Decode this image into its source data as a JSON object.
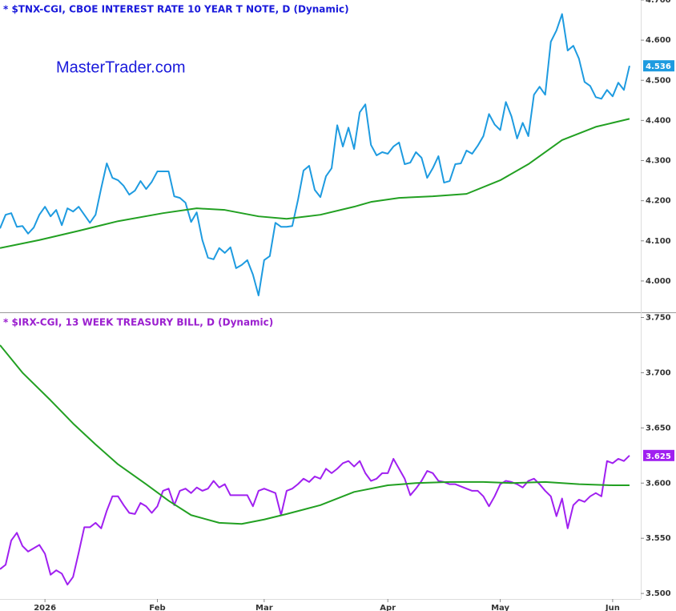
{
  "chart_data": [
    {
      "type": "line",
      "title": "* $TNX-CGI, CBOE INTEREST RATE 10 YEAR T NOTE, D (Dynamic)",
      "title_color": "#1a1adb",
      "annotation": "MasterTrader.com",
      "x": [
        0,
        1,
        2,
        3,
        4,
        5,
        6,
        7,
        8,
        9,
        10,
        11,
        12,
        13,
        14,
        15,
        16,
        17,
        18,
        19,
        20,
        21,
        22,
        23,
        24,
        25,
        26,
        27,
        28,
        29,
        30,
        31,
        32,
        33,
        34,
        35,
        36,
        37,
        38,
        39,
        40,
        41,
        42,
        43,
        44,
        45,
        46,
        47,
        48,
        49,
        50,
        51,
        52,
        53,
        54,
        55,
        56,
        57,
        58,
        59,
        60,
        61,
        62,
        63,
        64,
        65,
        66,
        67,
        68,
        69,
        70,
        71,
        72,
        73,
        74,
        75,
        76,
        77,
        78,
        79,
        80,
        81,
        82,
        83,
        84,
        85,
        86,
        87,
        88,
        89,
        90,
        91,
        92,
        93,
        94,
        95,
        96,
        97,
        98,
        99,
        100,
        101,
        102,
        103,
        104,
        105,
        106,
        107,
        108,
        109,
        110,
        111,
        112
      ],
      "xlim": [
        0,
        114
      ],
      "ylim": [
        3.922,
        4.7
      ],
      "yticks": [
        {
          "value": 4,
          "label": "4.000"
        },
        {
          "value": 4.1,
          "label": "4.100"
        },
        {
          "value": 4.2,
          "label": "4.200"
        },
        {
          "value": 4.3,
          "label": "4.300"
        },
        {
          "value": 4.4,
          "label": "4.400"
        },
        {
          "value": 4.5,
          "label": "4.500"
        },
        {
          "value": 4.6,
          "label": "4.600"
        },
        {
          "value": 4.7,
          "label": "4.700"
        }
      ],
      "series": [
        {
          "color": "#1e9be0",
          "last_label": true,
          "values": [
            4.131,
            4.165,
            4.169,
            4.135,
            4.137,
            4.118,
            4.133,
            4.165,
            4.185,
            4.161,
            4.177,
            4.139,
            4.181,
            4.173,
            4.185,
            4.165,
            4.145,
            4.165,
            4.231,
            4.293,
            4.257,
            4.251,
            4.237,
            4.215,
            4.225,
            4.249,
            4.229,
            4.247,
            4.273,
            4.273,
            4.273,
            4.211,
            4.207,
            4.195,
            4.147,
            4.171,
            4.102,
            4.058,
            4.054,
            4.082,
            4.07,
            4.084,
            4.032,
            4.04,
            4.052,
            4.016,
            3.964,
            4.052,
            4.062,
            4.145,
            4.135,
            4.135,
            4.137,
            4.201,
            4.275,
            4.287,
            4.227,
            4.209,
            4.261,
            4.281,
            4.388,
            4.335,
            4.382,
            4.329,
            4.42,
            4.44,
            4.339,
            4.313,
            4.321,
            4.317,
            4.335,
            4.345,
            4.291,
            4.295,
            4.321,
            4.307,
            4.257,
            4.281,
            4.311,
            4.245,
            4.249,
            4.291,
            4.293,
            4.325,
            4.317,
            4.337,
            4.361,
            4.416,
            4.39,
            4.376,
            4.446,
            4.41,
            4.355,
            4.394,
            4.361,
            4.464,
            4.484,
            4.464,
            4.596,
            4.624,
            4.665,
            4.574,
            4.586,
            4.554,
            4.496,
            4.486,
            4.458,
            4.454,
            4.476,
            4.46,
            4.494,
            4.476,
            4.536
          ]
        },
        {
          "color": "#22a022",
          "x": [
            0,
            7,
            14,
            21,
            29,
            35,
            40,
            46,
            51,
            57,
            63,
            66,
            71,
            77,
            83,
            89,
            94,
            100,
            106,
            112
          ],
          "values": [
            4.082,
            4.102,
            4.125,
            4.149,
            4.169,
            4.181,
            4.177,
            4.161,
            4.155,
            4.165,
            4.185,
            4.197,
            4.207,
            4.211,
            4.217,
            4.251,
            4.291,
            4.351,
            4.384,
            4.404
          ]
        }
      ]
    },
    {
      "type": "line",
      "title": "* $IRX-CGI, 13 WEEK TREASURY BILL, D (Dynamic)",
      "title_color": "#9b1fcf",
      "x": [
        0,
        1,
        2,
        3,
        4,
        5,
        6,
        7,
        8,
        9,
        10,
        11,
        12,
        13,
        14,
        15,
        16,
        17,
        18,
        19,
        20,
        21,
        22,
        23,
        24,
        25,
        26,
        27,
        28,
        29,
        30,
        31,
        32,
        33,
        34,
        35,
        36,
        37,
        38,
        39,
        40,
        41,
        42,
        43,
        44,
        45,
        46,
        47,
        48,
        49,
        50,
        51,
        52,
        53,
        54,
        55,
        56,
        57,
        58,
        59,
        60,
        61,
        62,
        63,
        64,
        65,
        66,
        67,
        68,
        69,
        70,
        71,
        72,
        73,
        74,
        75,
        76,
        77,
        78,
        79,
        80,
        81,
        82,
        83,
        84,
        85,
        86,
        87,
        88,
        89,
        90,
        91,
        92,
        93,
        94,
        95,
        96,
        97,
        98,
        99,
        100,
        101,
        102,
        103,
        104,
        105,
        106,
        107,
        108,
        109,
        110,
        111,
        112
      ],
      "xlim": [
        0,
        114
      ],
      "xticks": [
        {
          "value": 8,
          "label": "2026"
        },
        {
          "value": 28,
          "label": "Feb"
        },
        {
          "value": 47,
          "label": "Mar"
        },
        {
          "value": 69,
          "label": "Apr"
        },
        {
          "value": 89,
          "label": "May"
        },
        {
          "value": 109,
          "label": "Jun"
        }
      ],
      "ylim": [
        3.495,
        3.754
      ],
      "yticks": [
        {
          "value": 3.5,
          "label": "3.500"
        },
        {
          "value": 3.55,
          "label": "3.550"
        },
        {
          "value": 3.6,
          "label": "3.600"
        },
        {
          "value": 3.65,
          "label": "3.650"
        },
        {
          "value": 3.7,
          "label": "3.700"
        },
        {
          "value": 3.75,
          "label": "3.750"
        }
      ],
      "series": [
        {
          "color": "#a020f0",
          "last_label": true,
          "values": [
            3.522,
            3.526,
            3.548,
            3.555,
            3.543,
            3.538,
            3.541,
            3.544,
            3.536,
            3.517,
            3.521,
            3.518,
            3.508,
            3.515,
            3.537,
            3.56,
            3.56,
            3.564,
            3.559,
            3.575,
            3.588,
            3.588,
            3.58,
            3.573,
            3.572,
            3.582,
            3.579,
            3.573,
            3.579,
            3.593,
            3.595,
            3.58,
            3.593,
            3.595,
            3.591,
            3.596,
            3.593,
            3.595,
            3.602,
            3.596,
            3.599,
            3.589,
            3.589,
            3.589,
            3.589,
            3.579,
            3.593,
            3.595,
            3.593,
            3.591,
            3.571,
            3.593,
            3.595,
            3.599,
            3.604,
            3.601,
            3.606,
            3.604,
            3.613,
            3.609,
            3.613,
            3.618,
            3.62,
            3.615,
            3.62,
            3.609,
            3.602,
            3.604,
            3.609,
            3.609,
            3.622,
            3.613,
            3.604,
            3.589,
            3.595,
            3.602,
            3.611,
            3.609,
            3.602,
            3.601,
            3.599,
            3.599,
            3.597,
            3.595,
            3.593,
            3.593,
            3.588,
            3.579,
            3.588,
            3.599,
            3.602,
            3.601,
            3.599,
            3.596,
            3.602,
            3.604,
            3.599,
            3.593,
            3.588,
            3.57,
            3.586,
            3.559,
            3.58,
            3.585,
            3.583,
            3.588,
            3.591,
            3.588,
            3.62,
            3.618,
            3.622,
            3.62,
            3.625
          ]
        },
        {
          "color": "#22a022",
          "x": [
            0,
            4,
            9,
            13,
            17,
            21,
            26,
            30,
            34,
            39,
            43,
            47,
            51,
            57,
            63,
            69,
            74,
            80,
            86,
            91,
            97,
            103,
            109,
            112
          ],
          "values": [
            3.725,
            3.7,
            3.675,
            3.654,
            3.635,
            3.617,
            3.599,
            3.584,
            3.571,
            3.564,
            3.563,
            3.567,
            3.572,
            3.58,
            3.592,
            3.598,
            3.6,
            3.601,
            3.601,
            3.6,
            3.601,
            3.599,
            3.598,
            3.598
          ]
        }
      ]
    }
  ]
}
